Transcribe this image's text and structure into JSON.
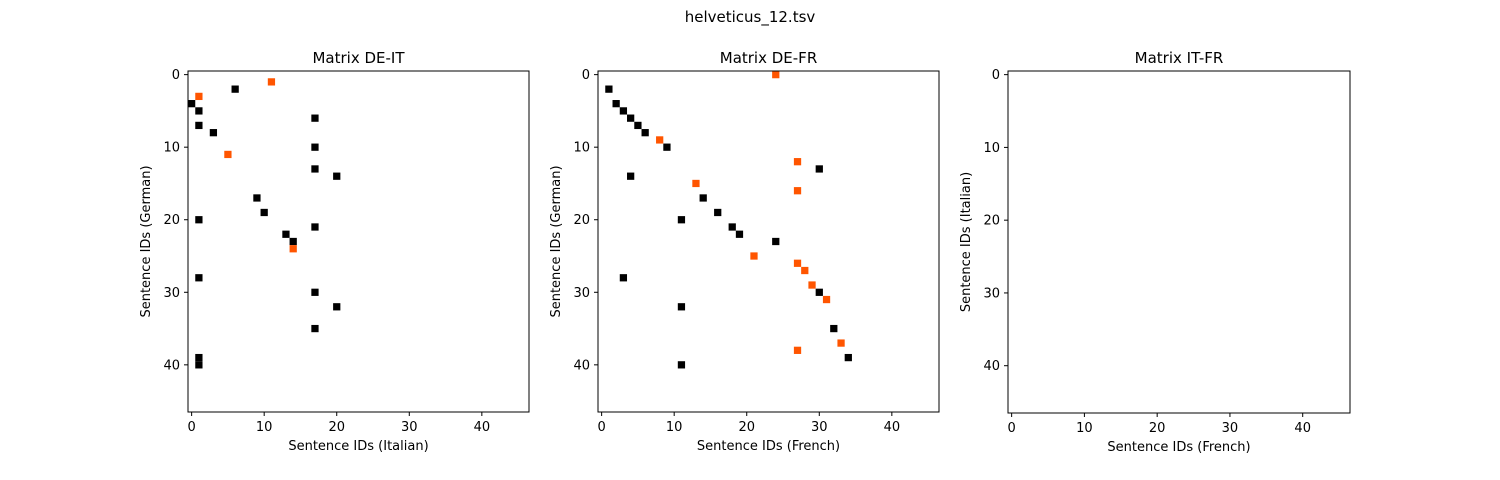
{
  "figure": {
    "title": "helveticus_12.tsv"
  },
  "colors": {
    "black": "#000000",
    "orange": "#ff5500"
  },
  "chart_data": [
    {
      "type": "scatter",
      "title": "Matrix DE-IT",
      "xlabel": "Sentence IDs (Italian)",
      "ylabel": "Sentence IDs (German)",
      "xlim": [
        -0.5,
        46.5
      ],
      "ylim": [
        46.5,
        -0.5
      ],
      "xticks": [
        0,
        10,
        20,
        30,
        40
      ],
      "yticks": [
        0,
        10,
        20,
        30,
        40
      ],
      "grid": false,
      "series": [
        {
          "color": "#000000",
          "points": [
            [
              6,
              2
            ],
            [
              0,
              4
            ],
            [
              1,
              5
            ],
            [
              17,
              6
            ],
            [
              1,
              7
            ],
            [
              3,
              8
            ],
            [
              17,
              10
            ],
            [
              17,
              13
            ],
            [
              20,
              14
            ],
            [
              9,
              17
            ],
            [
              10,
              19
            ],
            [
              1,
              20
            ],
            [
              17,
              21
            ],
            [
              13,
              22
            ],
            [
              14,
              23
            ],
            [
              1,
              28
            ],
            [
              17,
              30
            ],
            [
              20,
              32
            ],
            [
              17,
              35
            ],
            [
              1,
              39
            ],
            [
              1,
              40
            ]
          ]
        },
        {
          "color": "#ff5500",
          "points": [
            [
              11,
              1
            ],
            [
              1,
              3
            ],
            [
              5,
              11
            ],
            [
              14,
              24
            ]
          ]
        }
      ]
    },
    {
      "type": "scatter",
      "title": "Matrix DE-FR",
      "xlabel": "Sentence IDs (French)",
      "ylabel": "Sentence IDs (German)",
      "xlim": [
        -0.5,
        46.5
      ],
      "ylim": [
        46.5,
        -0.5
      ],
      "xticks": [
        0,
        10,
        20,
        30,
        40
      ],
      "yticks": [
        0,
        10,
        20,
        30,
        40
      ],
      "grid": false,
      "series": [
        {
          "color": "#000000",
          "points": [
            [
              1,
              2
            ],
            [
              2,
              4
            ],
            [
              3,
              5
            ],
            [
              4,
              6
            ],
            [
              5,
              7
            ],
            [
              6,
              8
            ],
            [
              9,
              10
            ],
            [
              30,
              13
            ],
            [
              4,
              14
            ],
            [
              14,
              17
            ],
            [
              16,
              19
            ],
            [
              11,
              20
            ],
            [
              18,
              21
            ],
            [
              19,
              22
            ],
            [
              24,
              23
            ],
            [
              3,
              28
            ],
            [
              30,
              30
            ],
            [
              11,
              32
            ],
            [
              32,
              35
            ],
            [
              34,
              39
            ],
            [
              11,
              40
            ]
          ]
        },
        {
          "color": "#ff5500",
          "points": [
            [
              24,
              0
            ],
            [
              8,
              9
            ],
            [
              27,
              12
            ],
            [
              13,
              15
            ],
            [
              27,
              16
            ],
            [
              21,
              25
            ],
            [
              27,
              26
            ],
            [
              28,
              27
            ],
            [
              29,
              29
            ],
            [
              31,
              31
            ],
            [
              33,
              37
            ],
            [
              27,
              38
            ]
          ]
        }
      ]
    },
    {
      "type": "scatter",
      "title": "Matrix IT-FR",
      "xlabel": "Sentence IDs (French)",
      "ylabel": "Sentence IDs (Italian)",
      "xlim": [
        -0.5,
        46.5
      ],
      "ylim": [
        46.5,
        -0.5
      ],
      "xticks": [
        0,
        10,
        20,
        30,
        40
      ],
      "yticks": [
        0,
        10,
        20,
        30,
        40
      ],
      "grid": false,
      "series": []
    }
  ]
}
